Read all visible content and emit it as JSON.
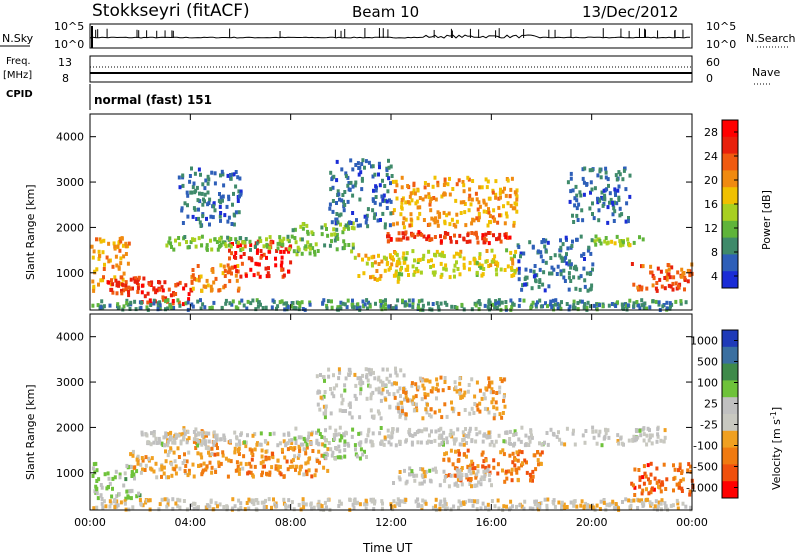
{
  "header": {
    "station": "Stokkseyri (fitACF)",
    "beam": "Beam 10",
    "date": "13/Dec/2012"
  },
  "nsky_panel": {
    "left_label": "N.Sky",
    "ticks_left": [
      "10^5",
      "10^0"
    ],
    "ticks_right": [
      "10^5",
      "10^0"
    ],
    "right_label": "N.Search"
  },
  "freq_panel": {
    "left_label_1": "Freq.",
    "left_label_2": "[MHz]",
    "ticks_left": [
      "13",
      "8"
    ],
    "ticks_right": [
      "60",
      "0"
    ],
    "right_label": "Nave"
  },
  "cpid": {
    "label": "CPID",
    "value": "normal (fast) 151"
  },
  "colors": {
    "power_scale": [
      "#1a2cd6",
      "#2e5fb8",
      "#3f8a6a",
      "#5fb43a",
      "#a8d020",
      "#f0c000",
      "#f08a10",
      "#f05a10",
      "#e8200c",
      "#ff0000"
    ],
    "velocity_scale": [
      "#1f3ab8",
      "#3a6fa0",
      "#3f8a4a",
      "#6ec23a",
      "#c0c0c0",
      "#c8c8c0",
      "#f0a020",
      "#f07a10",
      "#f0500c",
      "#ff0000"
    ]
  },
  "chart_data": [
    {
      "type": "heatmap",
      "title": "Power",
      "ylabel": "Slant Range [km]",
      "yticks": [
        "4000",
        "3000",
        "2000",
        "1000"
      ],
      "ylim": [
        180,
        4500
      ],
      "colorbar_label": "Power [dB]",
      "colorbar_ticks": [
        "28",
        "24",
        "20",
        "16",
        "12",
        "8",
        "4"
      ],
      "colorbar_range": [
        0,
        32
      ],
      "regions_note_free": true,
      "blobs": [
        {
          "t0": 0.0,
          "t1": 1.6,
          "r0": 600,
          "r1": 1800,
          "v": 20
        },
        {
          "t0": 0.6,
          "t1": 2.6,
          "r0": 500,
          "r1": 900,
          "v": 26
        },
        {
          "t0": 2.0,
          "t1": 4.0,
          "r0": 300,
          "r1": 800,
          "v": 27
        },
        {
          "t0": 4.0,
          "t1": 6.0,
          "r0": 600,
          "r1": 1200,
          "v": 22
        },
        {
          "t0": 5.5,
          "t1": 8.0,
          "r0": 900,
          "r1": 1700,
          "v": 28
        },
        {
          "t0": 3.0,
          "t1": 8.0,
          "r0": 1500,
          "r1": 1800,
          "v": 12
        },
        {
          "t0": 8.0,
          "t1": 10.5,
          "r0": 1400,
          "r1": 2100,
          "v": 12
        },
        {
          "t0": 10.5,
          "t1": 12.5,
          "r0": 800,
          "r1": 1400,
          "v": 18
        },
        {
          "t0": 11.8,
          "t1": 16.8,
          "r0": 1650,
          "r1": 1900,
          "v": 26
        },
        {
          "t0": 12.0,
          "t1": 17.0,
          "r0": 2000,
          "r1": 3100,
          "v": 20
        },
        {
          "t0": 12.0,
          "t1": 17.0,
          "r0": 900,
          "r1": 1500,
          "v": 16
        },
        {
          "t0": 9.5,
          "t1": 12.0,
          "r0": 2000,
          "r1": 3500,
          "v": 6
        },
        {
          "t0": 3.5,
          "t1": 6.0,
          "r0": 2000,
          "r1": 3300,
          "v": 6
        },
        {
          "t0": 17.0,
          "t1": 20.0,
          "r0": 600,
          "r1": 1800,
          "v": 6
        },
        {
          "t0": 20.0,
          "t1": 22.0,
          "r0": 1600,
          "r1": 1800,
          "v": 14
        },
        {
          "t0": 21.5,
          "t1": 24.0,
          "r0": 600,
          "r1": 1200,
          "v": 24
        },
        {
          "t0": 19.0,
          "t1": 21.5,
          "r0": 2100,
          "r1": 3300,
          "v": 6
        },
        {
          "t0": 0.0,
          "t1": 24.0,
          "r0": 180,
          "r1": 400,
          "v": 8
        }
      ]
    },
    {
      "type": "heatmap",
      "title": "Velocity",
      "ylabel": "Slant Range [km]",
      "yticks": [
        "4000",
        "3000",
        "2000",
        "1000"
      ],
      "ylim": [
        180,
        4500
      ],
      "colorbar_label": "Velocity [m s^-1]",
      "colorbar_ticks": [
        "1000",
        "500",
        "100",
        "25",
        "-25",
        "-100",
        "-500",
        "-1000"
      ],
      "colorbar_range": [
        -1000,
        1000
      ],
      "blobs": [
        {
          "t0": 0.0,
          "t1": 2.0,
          "r0": 400,
          "r1": 1200,
          "v": 200
        },
        {
          "t0": 1.5,
          "t1": 4.0,
          "r0": 900,
          "r1": 1500,
          "v": -300
        },
        {
          "t0": 3.0,
          "t1": 5.0,
          "r0": 1500,
          "r1": 2000,
          "v": -200
        },
        {
          "t0": 4.0,
          "t1": 9.5,
          "r0": 900,
          "r1": 1700,
          "v": -400
        },
        {
          "t0": 2.0,
          "t1": 9.0,
          "r0": 1600,
          "r1": 1900,
          "v": 0
        },
        {
          "t0": 8.0,
          "t1": 11.0,
          "r0": 1300,
          "r1": 2000,
          "v": 150
        },
        {
          "t0": 9.0,
          "t1": 12.5,
          "r0": 2200,
          "r1": 3300,
          "v": 0
        },
        {
          "t0": 11.0,
          "t1": 23.0,
          "r0": 1600,
          "r1": 2000,
          "v": 0
        },
        {
          "t0": 12.0,
          "t1": 16.5,
          "r0": 2200,
          "r1": 3100,
          "v": -300
        },
        {
          "t0": 14.0,
          "t1": 18.0,
          "r0": 800,
          "r1": 1500,
          "v": -500
        },
        {
          "t0": 21.5,
          "t1": 24.0,
          "r0": 500,
          "r1": 1200,
          "v": -600
        },
        {
          "t0": 12.0,
          "t1": 16.0,
          "r0": 700,
          "r1": 1100,
          "v": 0
        },
        {
          "t0": 0.0,
          "t1": 24.0,
          "r0": 180,
          "r1": 420,
          "v": -100
        }
      ]
    }
  ],
  "xaxis": {
    "ticks": [
      "00:00",
      "04:00",
      "08:00",
      "12:00",
      "16:00",
      "20:00",
      "00:00"
    ],
    "label": "Time UT",
    "range_hours": [
      0,
      24
    ]
  }
}
